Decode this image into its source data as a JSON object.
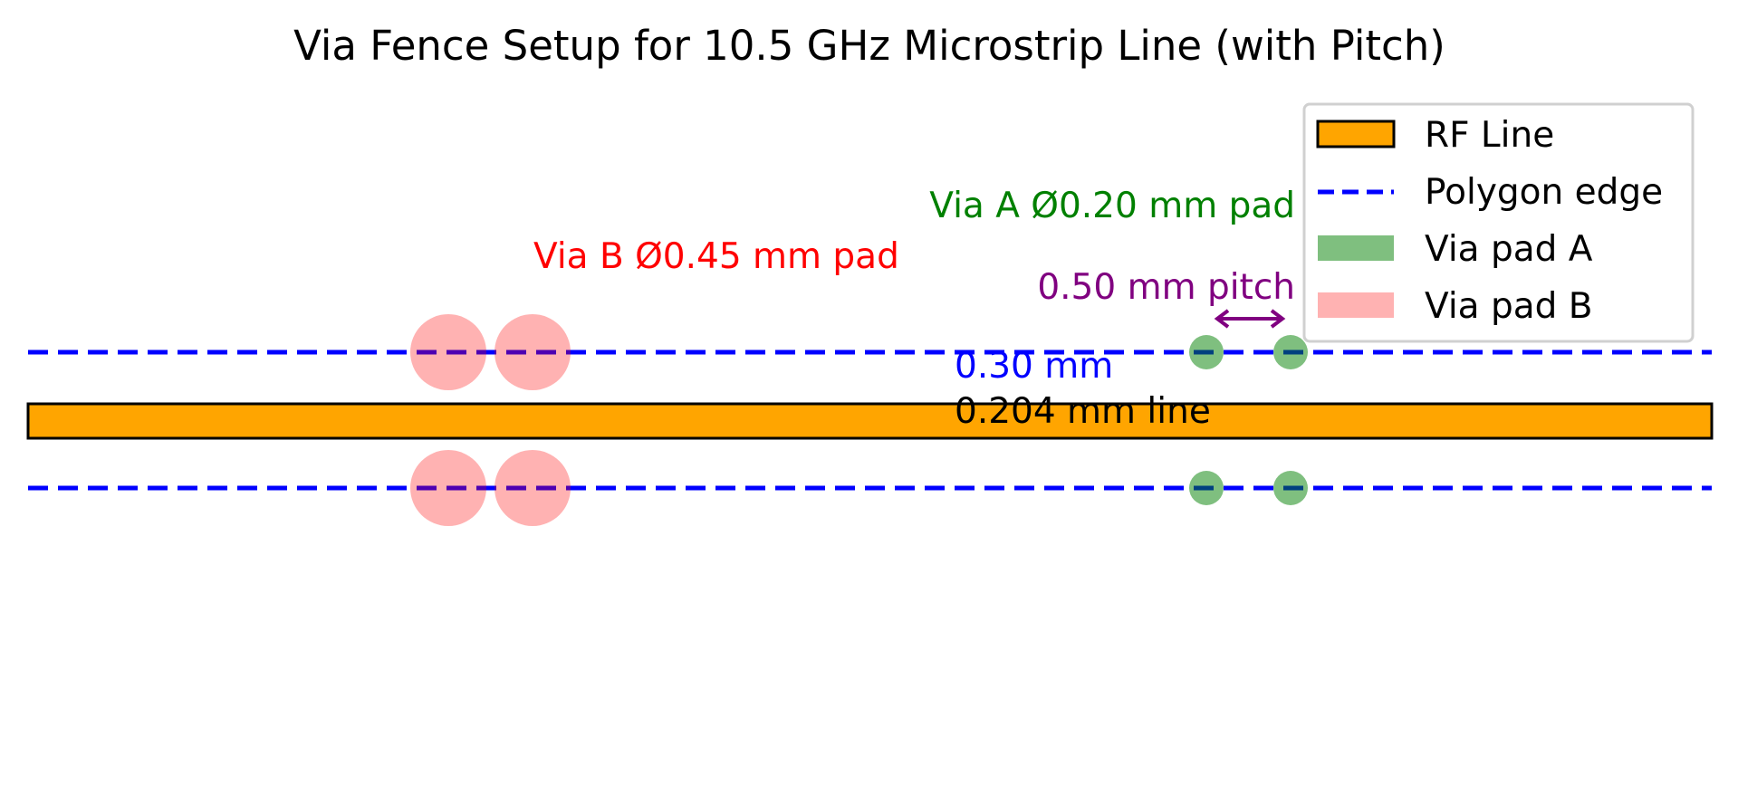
{
  "title": "Via Fence Setup for 10.5 GHz Microstrip Line (with Pitch)",
  "annotations": {
    "via_b": "Via B Ø0.45 mm pad",
    "via_a": "Via A Ø0.20 mm pad",
    "pitch": "0.50 mm pitch",
    "gap": "0.30 mm",
    "line_width": "0.204 mm line"
  },
  "legend": {
    "items": [
      {
        "label": "RF Line",
        "color": "#ffa500"
      },
      {
        "label": "Polygon edge",
        "color": "#0000ff"
      },
      {
        "label": "Via pad A",
        "color": "#80c080"
      },
      {
        "label": "Via pad B",
        "color": "#ffb0b0"
      }
    ]
  },
  "colors": {
    "rf_line": "#ffa500",
    "polygon_edge": "#0000ff",
    "via_a": "#80c080",
    "via_b": "#ffb0b0",
    "via_b_label": "#ff0000",
    "via_a_label": "#008000",
    "pitch": "#800080",
    "gap_label": "#0000ff"
  }
}
